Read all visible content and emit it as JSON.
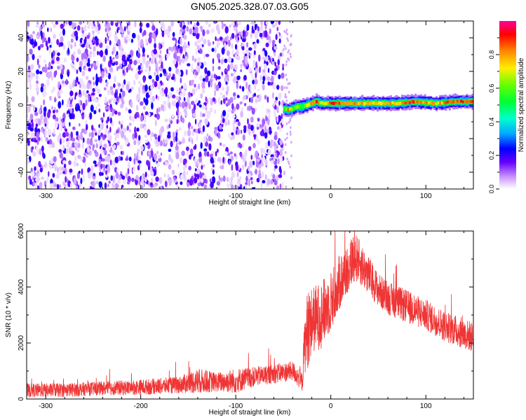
{
  "title": "GN05.2025.328.07.03.G05",
  "colors": {
    "snr_line": "#ef3535",
    "plot_bg": "#ffffff",
    "axis": "#000000"
  },
  "chart_data": [
    {
      "type": "heatmap",
      "xlabel": "Height of straight line (km)",
      "ylabel": "Frequency (Hz)",
      "xlim": [
        -320,
        150
      ],
      "ylim": [
        -50,
        50
      ],
      "xticks": [
        -300,
        -200,
        -100,
        0,
        100
      ],
      "xtick_labels": [
        "-300",
        "-200",
        "-100",
        "0",
        "100"
      ],
      "yticks": [
        -40,
        -20,
        0,
        20,
        40
      ],
      "ytick_labels": [
        "-40",
        "-20",
        "0",
        "20",
        "40"
      ],
      "noise_region_x": [
        -320,
        -50
      ],
      "noise_amplitude_range": [
        0.0,
        0.2
      ],
      "signal_region_x": [
        -50,
        150
      ],
      "signal_ridge": {
        "x": [
          -50,
          -45,
          -40,
          -35,
          -30,
          -25,
          -20,
          -15,
          -10,
          0,
          10,
          40,
          70,
          90,
          110,
          130,
          150
        ],
        "frequency": [
          -2.0,
          -3.0,
          -2.0,
          -1.0,
          -1.0,
          0.0,
          1.0,
          2.0,
          1.0,
          1.0,
          1.0,
          1.0,
          1.0,
          2.0,
          1.0,
          2.0,
          2.0
        ],
        "peak_amplitude": [
          0.5,
          0.9,
          0.6,
          0.7,
          0.5,
          0.8,
          0.9,
          0.95,
          0.7,
          0.95,
          0.9,
          0.8,
          0.85,
          0.95,
          0.8,
          0.95,
          0.95
        ]
      },
      "colorbar": {
        "label": "Normalized spectral amplitude",
        "ticks": [
          0.0,
          0.2,
          0.4,
          0.6,
          0.8
        ],
        "tick_labels": [
          "0.0",
          "0.2",
          "0.4",
          "0.6",
          "0.8"
        ],
        "range": [
          0.0,
          1.0
        ]
      }
    },
    {
      "type": "line",
      "xlabel": "Height of straight line (km)",
      "ylabel": "SNR (10 * v/v)",
      "xlim": [
        -320,
        150
      ],
      "ylim": [
        0,
        6000
      ],
      "xticks": [
        -300,
        -200,
        -100,
        0,
        100
      ],
      "xtick_labels": [
        "-300",
        "-200",
        "-100",
        "0",
        "100"
      ],
      "yticks": [
        0,
        2000,
        4000,
        6000
      ],
      "ytick_labels": [
        "0",
        "2000",
        "4000",
        "6000"
      ],
      "series": [
        {
          "name": "SNR",
          "x": [
            -320,
            -280,
            -240,
            -200,
            -160,
            -140,
            -120,
            -100,
            -80,
            -60,
            -40,
            -30,
            -28,
            -25,
            -20,
            -10,
            0,
            10,
            20,
            25,
            30,
            40,
            50,
            60,
            80,
            100,
            120,
            150
          ],
          "y_center": [
            300,
            320,
            380,
            420,
            500,
            650,
            600,
            650,
            800,
            900,
            1000,
            600,
            1800,
            2400,
            2800,
            3000,
            3500,
            4200,
            4800,
            5100,
            4900,
            4400,
            3900,
            3600,
            3300,
            3000,
            2600,
            2200
          ],
          "y_spread": [
            250,
            250,
            250,
            280,
            300,
            450,
            350,
            450,
            350,
            350,
            350,
            350,
            900,
            1400,
            1200,
            1200,
            1100,
            1000,
            900,
            900,
            800,
            700,
            600,
            600,
            600,
            550,
            550,
            550
          ]
        }
      ]
    }
  ]
}
